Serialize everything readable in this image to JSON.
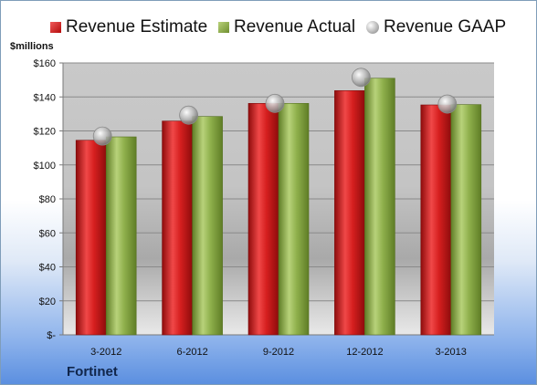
{
  "chart_data": {
    "type": "bar",
    "ylabel": "$millions",
    "categories": [
      "3-2012",
      "6-2012",
      "9-2012",
      "12-2012",
      "3-2013"
    ],
    "series": [
      {
        "name": "Revenue Estimate",
        "kind": "bar",
        "color": "#cc1f1f",
        "values": [
          114.5,
          125.8,
          136.2,
          143.7,
          135.3
        ]
      },
      {
        "name": "Revenue Actual",
        "kind": "bar",
        "color": "#8aab47",
        "values": [
          116.5,
          128.5,
          136.2,
          151.0,
          135.5
        ]
      },
      {
        "name": "Revenue GAAP",
        "kind": "marker",
        "color": "#a6a6a6",
        "values": [
          117.0,
          129.3,
          136.2,
          151.5,
          135.8
        ]
      }
    ],
    "ylim": [
      0,
      160
    ],
    "yticks": [
      {
        "value": 0,
        "label": "$-"
      },
      {
        "value": 20,
        "label": "$20"
      },
      {
        "value": 40,
        "label": "$40"
      },
      {
        "value": 60,
        "label": "$60"
      },
      {
        "value": 80,
        "label": "$80"
      },
      {
        "value": 100,
        "label": "$100"
      },
      {
        "value": 120,
        "label": "$120"
      },
      {
        "value": 140,
        "label": "$140"
      },
      {
        "value": 160,
        "label": "$160"
      }
    ],
    "grid": true,
    "legend": "top",
    "footer": "Fortinet"
  }
}
